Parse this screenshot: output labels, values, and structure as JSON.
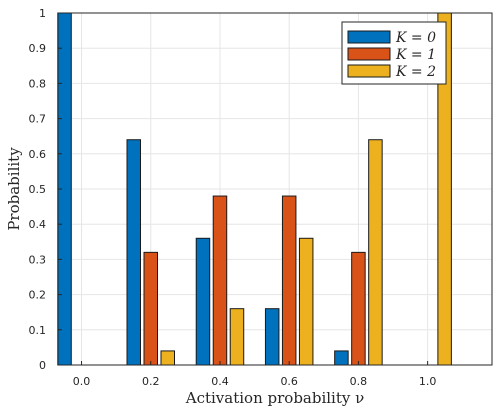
{
  "chart_data": {
    "type": "bar",
    "categories": [
      "0.0",
      "0.2",
      "0.4",
      "0.6",
      "0.8",
      "1.0"
    ],
    "series": [
      {
        "name": "K = 0",
        "color": "#0072BD",
        "values": [
          1,
          0.64,
          0.36,
          0.16,
          0.04,
          0
        ]
      },
      {
        "name": "K = 1",
        "color": "#D95319",
        "values": [
          0,
          0.32,
          0.48,
          0.48,
          0.32,
          0
        ]
      },
      {
        "name": "K = 2",
        "color": "#EDB120",
        "values": [
          0,
          0.04,
          0.16,
          0.36,
          0.64,
          1
        ]
      }
    ],
    "xlabel": "Activation probability ν",
    "ylabel": "Probability",
    "ylim": [
      0,
      1
    ],
    "yticks": [
      0,
      0.1,
      0.2,
      0.3,
      0.4,
      0.5,
      0.6,
      0.7,
      0.8,
      0.9,
      1
    ],
    "ytick_labels": [
      "0",
      "0.1",
      "0.2",
      "0.3",
      "0.4",
      "0.5",
      "0.6",
      "0.7",
      "0.8",
      "0.9",
      "1"
    ],
    "grid": true,
    "legend_position": "top-right"
  }
}
